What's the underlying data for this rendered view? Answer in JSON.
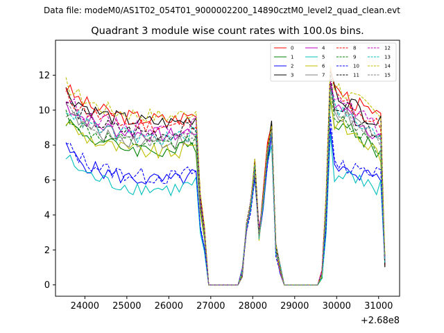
{
  "chart_data": {
    "type": "line",
    "suptitle": "Data file: modeM0/AS1T02_054T01_9000002200_14890cztM0_level2_quad_clean.evt",
    "title": "Quadrant 3 module wise count rates with 100.0s bins.",
    "xlabel": "",
    "ylabel": "",
    "x_offset_label": "+2.68e8",
    "xlim": [
      23300,
      31500
    ],
    "ylim": [
      -0.65,
      14.0
    ],
    "x_ticks": [
      24000,
      25000,
      26000,
      27000,
      28000,
      29000,
      30000,
      31000
    ],
    "x_tick_labels": [
      "24000",
      "25000",
      "26000",
      "27000",
      "28000",
      "29000",
      "30000",
      "31000"
    ],
    "y_ticks": [
      0,
      2,
      4,
      6,
      8,
      10,
      12
    ],
    "y_tick_labels": [
      "0",
      "2",
      "4",
      "6",
      "8",
      "10",
      "12"
    ],
    "grid": false,
    "legend_position": "top-right",
    "x_start": 23550,
    "x_step": 100,
    "segments": [
      {
        "start": 23550,
        "end": 26750
      },
      {
        "start": 27750,
        "end": 28650
      },
      {
        "start": 29650,
        "end": 31150
      }
    ],
    "series": [
      {
        "name": "0",
        "color": "#ff0000",
        "dash": "solid",
        "level": 9.4,
        "shape": "a"
      },
      {
        "name": "1",
        "color": "#008000",
        "dash": "solid",
        "level": 7.6,
        "shape": "b"
      },
      {
        "name": "2",
        "color": "#0000ff",
        "dash": "solid",
        "level": 5.9,
        "shape": "c"
      },
      {
        "name": "3",
        "color": "#000000",
        "dash": "solid",
        "level": 9.2,
        "shape": "a"
      },
      {
        "name": "4",
        "color": "#bf00bf",
        "dash": "solid",
        "level": 8.5,
        "shape": "b"
      },
      {
        "name": "5",
        "color": "#00bfbf",
        "dash": "solid",
        "level": 5.4,
        "shape": "c"
      },
      {
        "name": "6",
        "color": "#bfbf00",
        "dash": "solid",
        "level": 7.5,
        "shape": "b"
      },
      {
        "name": "7",
        "color": "#808080",
        "dash": "solid",
        "level": 8.1,
        "shape": "a"
      },
      {
        "name": "8",
        "color": "#ff0000",
        "dash": "dashed",
        "level": 9.0,
        "shape": "a"
      },
      {
        "name": "9",
        "color": "#008000",
        "dash": "dashed",
        "level": 7.9,
        "shape": "b"
      },
      {
        "name": "10",
        "color": "#0000ff",
        "dash": "dashed",
        "level": 6.1,
        "shape": "c"
      },
      {
        "name": "11",
        "color": "#000000",
        "dash": "dashed",
        "level": 8.6,
        "shape": "a"
      },
      {
        "name": "12",
        "color": "#bf00bf",
        "dash": "dashed",
        "level": 8.8,
        "shape": "b"
      },
      {
        "name": "13",
        "color": "#00bfbf",
        "dash": "dashed",
        "level": 8.3,
        "shape": "a"
      },
      {
        "name": "14",
        "color": "#bfbf00",
        "dash": "dashed",
        "level": 9.6,
        "shape": "a"
      },
      {
        "name": "15",
        "color": "#808080",
        "dash": "dashed",
        "level": 8.2,
        "shape": "b"
      }
    ]
  }
}
